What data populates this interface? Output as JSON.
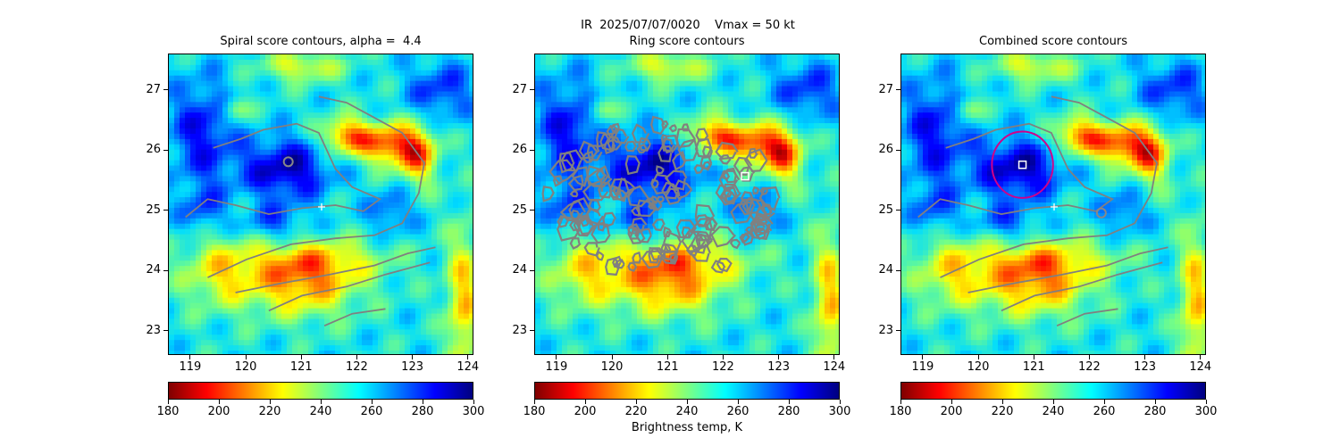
{
  "suptitle": "IR  2025/07/07/0020    Vmax = 50 kt",
  "colorbar_label": "Brightness temp, K",
  "chart_data": [
    {
      "type": "heatmap",
      "title": "Spiral score contours, alpha =  4.4",
      "xlim": [
        118.6,
        124.1
      ],
      "ylim": [
        22.6,
        27.6
      ],
      "x_ticks": [
        "119",
        "120",
        "121",
        "122",
        "123",
        "124"
      ],
      "y_ticks": [
        "23",
        "24",
        "25",
        "26",
        "27"
      ],
      "colorbar": {
        "range": [
          180,
          300
        ],
        "ticks": [
          "180",
          "200",
          "220",
          "240",
          "260",
          "280",
          "300"
        ],
        "colormap": "jet_r"
      },
      "markers": [
        {
          "kind": "cross",
          "color": "#ffffff",
          "lon": 121.35,
          "lat": 25.07
        },
        {
          "kind": "circle",
          "color": "#888888",
          "lon": 120.75,
          "lat": 25.82
        }
      ],
      "contour_color": "#808080"
    },
    {
      "type": "heatmap",
      "title": "Ring score contours",
      "xlim": [
        118.6,
        124.1
      ],
      "ylim": [
        22.6,
        27.6
      ],
      "x_ticks": [
        "119",
        "120",
        "121",
        "122",
        "123",
        "124"
      ],
      "y_ticks": [
        "23",
        "24",
        "25",
        "26",
        "27"
      ],
      "colorbar": {
        "range": [
          180,
          300
        ],
        "ticks": [
          "180",
          "200",
          "220",
          "240",
          "260",
          "280",
          "300"
        ],
        "colormap": "jet_r"
      },
      "markers": [
        {
          "kind": "square",
          "color": "#ffffff",
          "lon": 122.38,
          "lat": 25.58
        }
      ],
      "contour_color": "#808080"
    },
    {
      "type": "heatmap",
      "title": "Combined score contours",
      "xlim": [
        118.6,
        124.1
      ],
      "ylim": [
        22.6,
        27.6
      ],
      "x_ticks": [
        "119",
        "120",
        "121",
        "122",
        "123",
        "124"
      ],
      "y_ticks": [
        "23",
        "24",
        "25",
        "26",
        "27"
      ],
      "colorbar": {
        "range": [
          180,
          300
        ],
        "ticks": [
          "180",
          "200",
          "220",
          "240",
          "260",
          "280",
          "300"
        ],
        "colormap": "jet_r"
      },
      "markers": [
        {
          "kind": "cross",
          "color": "#ffffff",
          "lon": 121.35,
          "lat": 25.07
        },
        {
          "kind": "square",
          "color": "#ffffff",
          "lon": 120.78,
          "lat": 25.77
        },
        {
          "kind": "circle",
          "color": "#888888",
          "lon": 122.2,
          "lat": 24.97
        },
        {
          "kind": "ring",
          "color": "#d0008a",
          "lon": 120.78,
          "lat": 25.77,
          "radius_deg": 0.55
        }
      ],
      "contour_color": "#808080"
    }
  ]
}
